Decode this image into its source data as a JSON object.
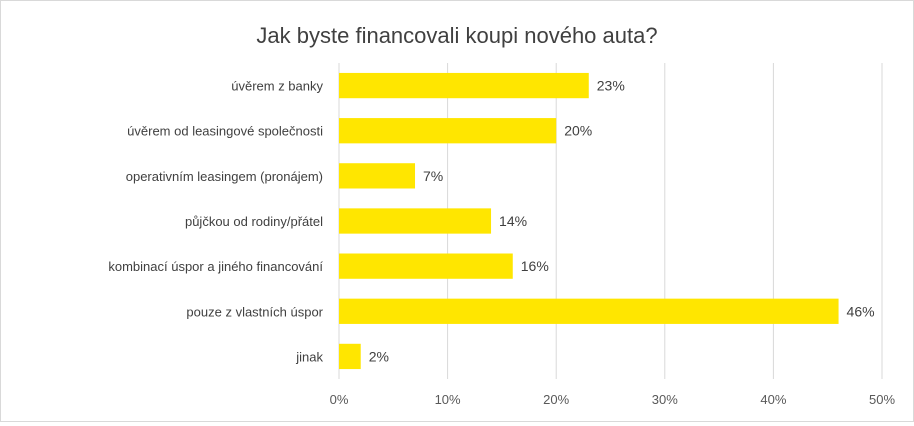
{
  "chart_data": {
    "type": "bar",
    "orientation": "horizontal",
    "title": "Jak byste financovali koupi nového auta?",
    "xlabel": "",
    "ylabel": "",
    "categories": [
      "úvěrem z banky",
      "úvěrem od leasingové společnosti",
      "operativním leasingem (pronájem)",
      "půjčkou od rodiny/přátel",
      "kombinací úspor a jiného financování",
      "pouze z vlastních úspor",
      "jinak"
    ],
    "values": [
      23,
      20,
      7,
      14,
      16,
      46,
      2
    ],
    "data_labels": [
      "23%",
      "20%",
      "7%",
      "14%",
      "16%",
      "46%",
      "2%"
    ],
    "xlim": [
      0,
      50
    ],
    "ticks": [
      0,
      10,
      20,
      30,
      40,
      50
    ],
    "tick_labels": [
      "0%",
      "10%",
      "20%",
      "30%",
      "40%",
      "50%"
    ],
    "grid": "vertical",
    "legend": "none",
    "colors": {
      "bar": "#FFE600",
      "grid": "#d9d9d9",
      "text": "#404040"
    }
  }
}
